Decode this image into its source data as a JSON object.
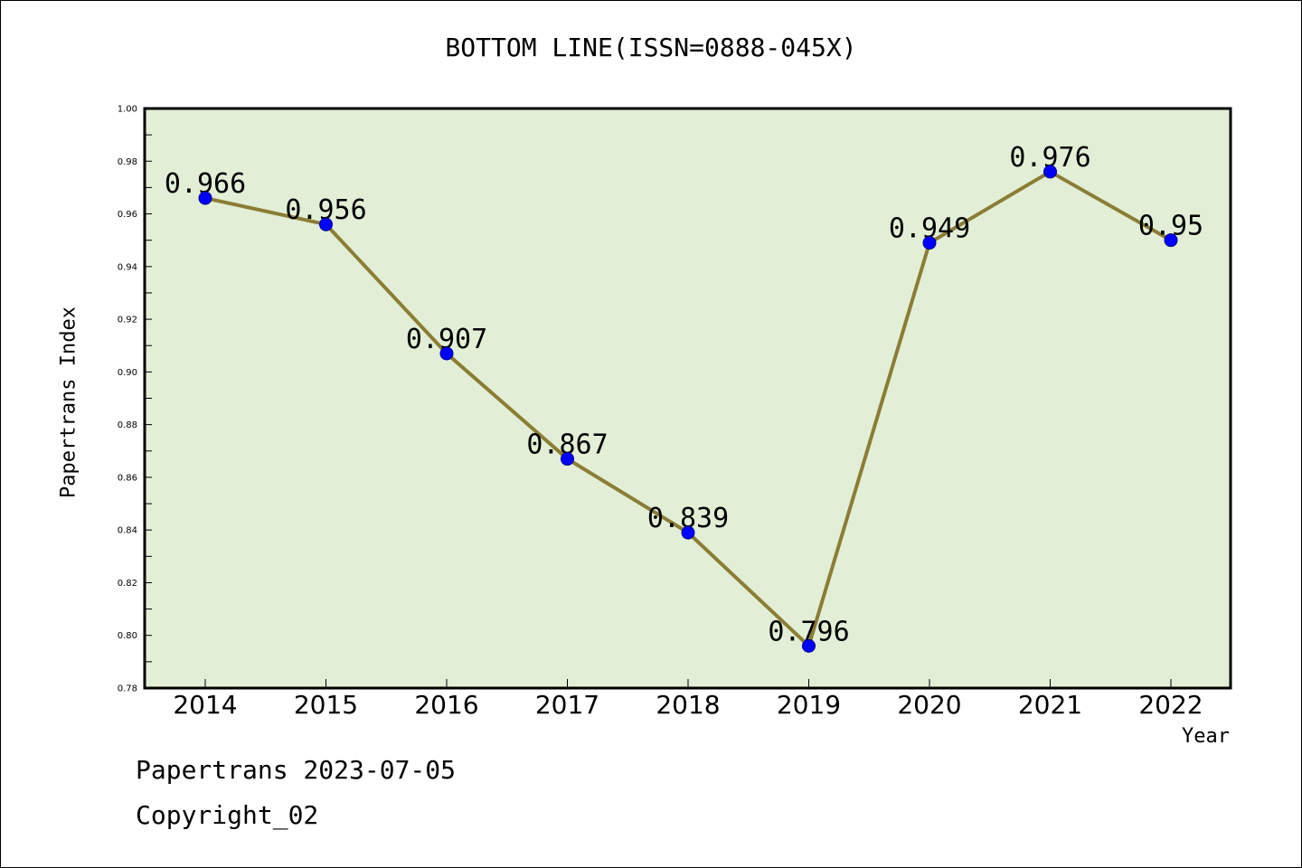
{
  "chart_data": {
    "type": "line",
    "title": "BOTTOM LINE(ISSN=0888-045X)",
    "xlabel": "Year",
    "ylabel": "Papertrans Index",
    "ylim": [
      0.78,
      1.0
    ],
    "y_ticks": [
      "0.78",
      "0.80",
      "0.82",
      "0.84",
      "0.86",
      "0.88",
      "0.90",
      "0.92",
      "0.94",
      "0.96",
      "0.98",
      "1.00"
    ],
    "categories": [
      "2014",
      "2015",
      "2016",
      "2017",
      "2018",
      "2019",
      "2020",
      "2021",
      "2022"
    ],
    "series": [
      {
        "values": [
          0.966,
          0.956,
          0.907,
          0.867,
          0.839,
          0.796,
          0.949,
          0.976,
          0.95
        ],
        "labels": [
          "0.966",
          "0.956",
          "0.907",
          "0.867",
          "0.839",
          "0.796",
          "0.949",
          "0.976",
          "0.95"
        ],
        "line_color": "#8b7d35",
        "marker_color": "#0000ff"
      }
    ],
    "plot_background": "#e2efd6",
    "grid": false,
    "legend": "none"
  },
  "footer": {
    "line1": "Papertrans 2023-07-05",
    "line2": "Copyright_02"
  }
}
